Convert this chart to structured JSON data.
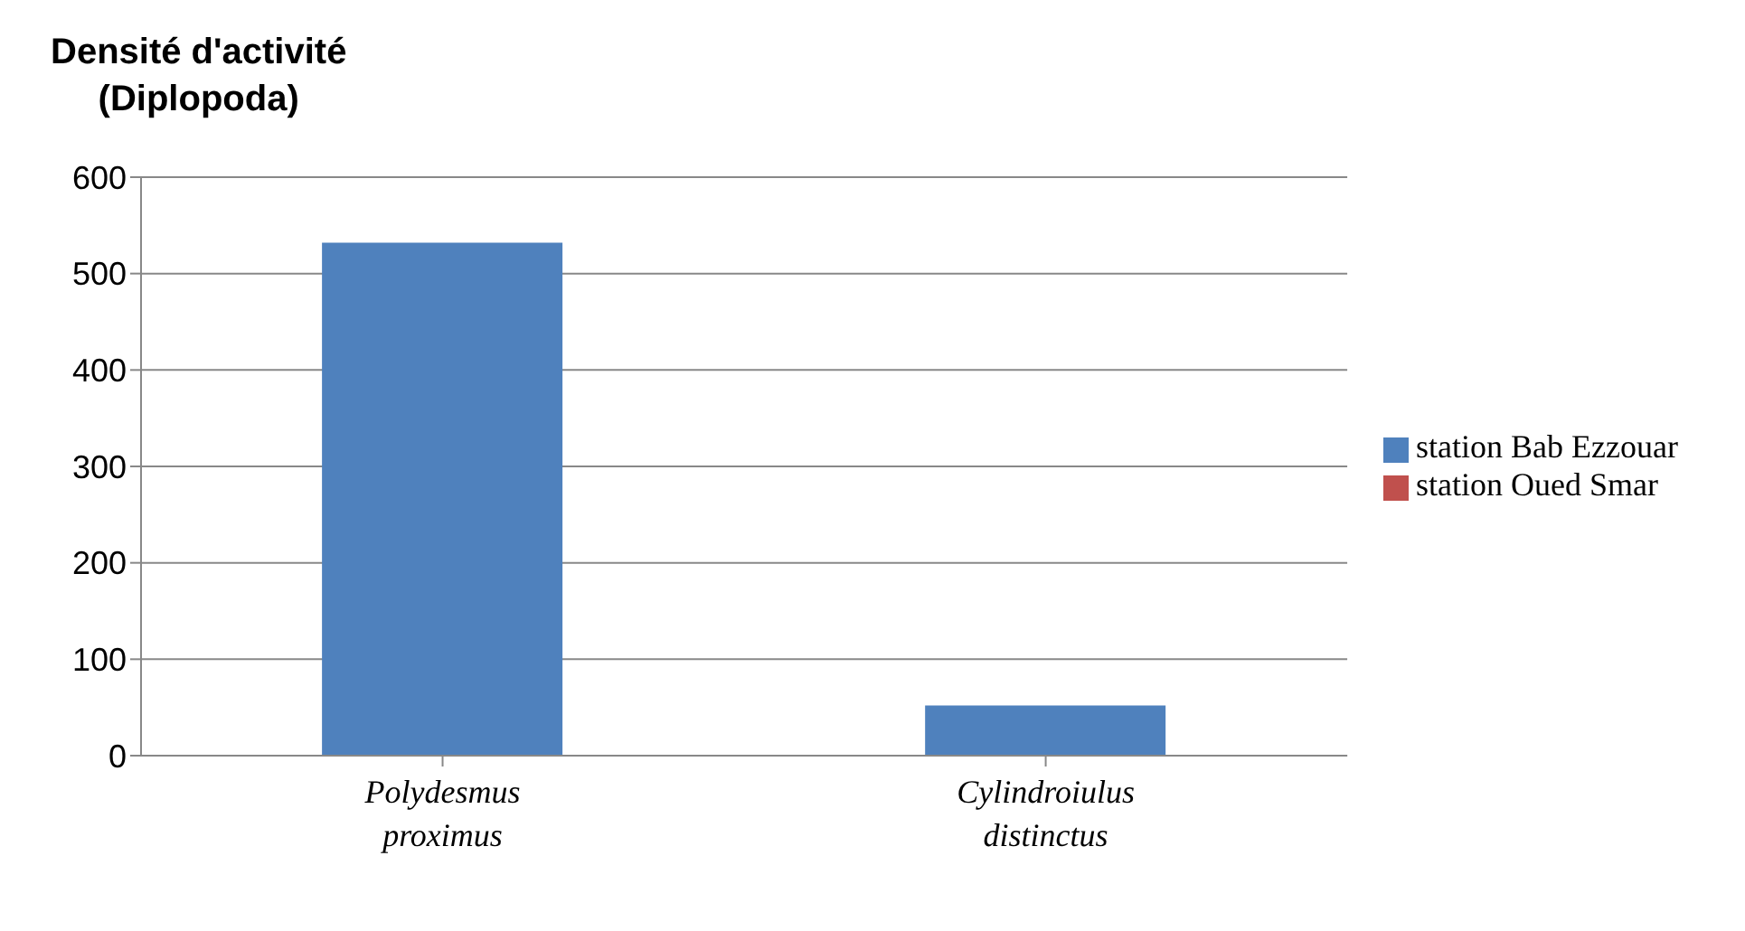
{
  "chart_data": {
    "type": "bar",
    "ylabel": "Densité d'activité (Diplopoda)",
    "categories": [
      "Polydesmus proximus",
      "Cylindroiulus distinctus"
    ],
    "stacked": true,
    "series": [
      {
        "name": "station Bab Ezzouar",
        "color": "#4f81bd",
        "values": [
          532,
          52
        ]
      },
      {
        "name": "station Oued Smar",
        "color": "#c0504d",
        "values": [
          0,
          0
        ]
      }
    ],
    "ylim": [
      0,
      600
    ],
    "yticks": [
      0,
      100,
      200,
      300,
      400,
      500,
      600
    ],
    "grid": "y",
    "legend": "right"
  }
}
